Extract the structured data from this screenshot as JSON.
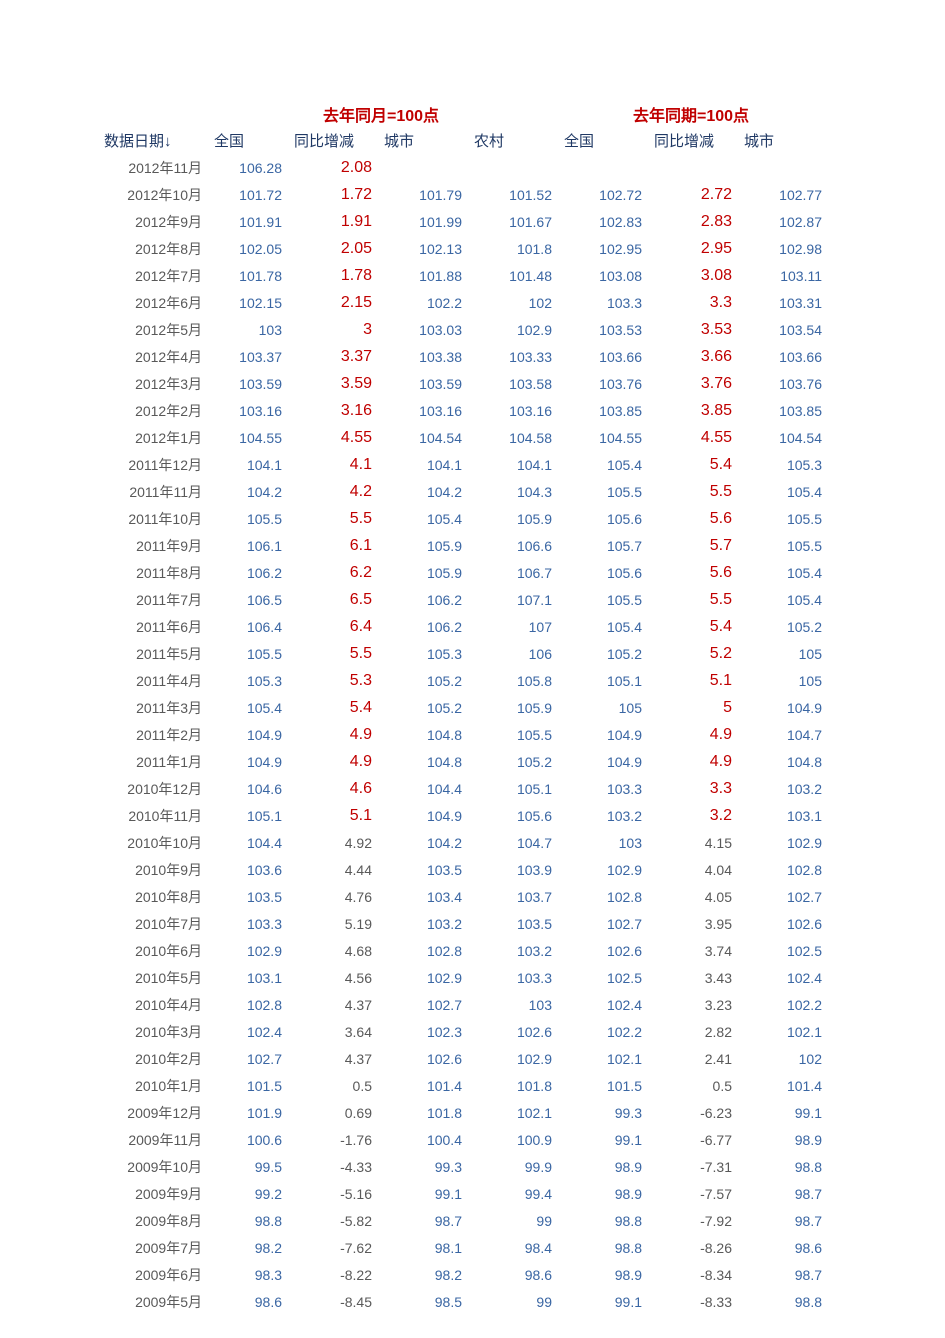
{
  "colors": {
    "header_group": "#c00000",
    "header_col": "#1f3864",
    "date_text": "#595959",
    "value_text": "#3a66a3",
    "change_highlight": "#c00000",
    "change_normal": "#595959",
    "background": "#ffffff"
  },
  "fonts": {
    "group_header_size": 16,
    "col_header_size": 15,
    "cell_size": 14,
    "change_big_size": 16
  },
  "group_headers": {
    "left": "去年同月=100点",
    "right": "去年同期=100点"
  },
  "columns": {
    "date": "数据日期↓",
    "nation": "全国",
    "change": "同比增减",
    "city": "城市",
    "rural": "农村",
    "nation2": "全国",
    "change2": "同比增减",
    "city2": "城市"
  },
  "highlight_rule": "change cells from 2010年11月 and later shown in red larger font",
  "rows": [
    {
      "date": "2012年11月",
      "nation": "106.28",
      "change": "2.08",
      "city": "",
      "rural": "",
      "nation2": "",
      "change2": "",
      "city2": "",
      "hl": true
    },
    {
      "date": "2012年10月",
      "nation": "101.72",
      "change": "1.72",
      "city": "101.79",
      "rural": "101.52",
      "nation2": "102.72",
      "change2": "2.72",
      "city2": "102.77",
      "hl": true
    },
    {
      "date": "2012年9月",
      "nation": "101.91",
      "change": "1.91",
      "city": "101.99",
      "rural": "101.67",
      "nation2": "102.83",
      "change2": "2.83",
      "city2": "102.87",
      "hl": true
    },
    {
      "date": "2012年8月",
      "nation": "102.05",
      "change": "2.05",
      "city": "102.13",
      "rural": "101.8",
      "nation2": "102.95",
      "change2": "2.95",
      "city2": "102.98",
      "hl": true
    },
    {
      "date": "2012年7月",
      "nation": "101.78",
      "change": "1.78",
      "city": "101.88",
      "rural": "101.48",
      "nation2": "103.08",
      "change2": "3.08",
      "city2": "103.11",
      "hl": true
    },
    {
      "date": "2012年6月",
      "nation": "102.15",
      "change": "2.15",
      "city": "102.2",
      "rural": "102",
      "nation2": "103.3",
      "change2": "3.3",
      "city2": "103.31",
      "hl": true
    },
    {
      "date": "2012年5月",
      "nation": "103",
      "change": "3",
      "city": "103.03",
      "rural": "102.9",
      "nation2": "103.53",
      "change2": "3.53",
      "city2": "103.54",
      "hl": true
    },
    {
      "date": "2012年4月",
      "nation": "103.37",
      "change": "3.37",
      "city": "103.38",
      "rural": "103.33",
      "nation2": "103.66",
      "change2": "3.66",
      "city2": "103.66",
      "hl": true
    },
    {
      "date": "2012年3月",
      "nation": "103.59",
      "change": "3.59",
      "city": "103.59",
      "rural": "103.58",
      "nation2": "103.76",
      "change2": "3.76",
      "city2": "103.76",
      "hl": true
    },
    {
      "date": "2012年2月",
      "nation": "103.16",
      "change": "3.16",
      "city": "103.16",
      "rural": "103.16",
      "nation2": "103.85",
      "change2": "3.85",
      "city2": "103.85",
      "hl": true
    },
    {
      "date": "2012年1月",
      "nation": "104.55",
      "change": "4.55",
      "city": "104.54",
      "rural": "104.58",
      "nation2": "104.55",
      "change2": "4.55",
      "city2": "104.54",
      "hl": true
    },
    {
      "date": "2011年12月",
      "nation": "104.1",
      "change": "4.1",
      "city": "104.1",
      "rural": "104.1",
      "nation2": "105.4",
      "change2": "5.4",
      "city2": "105.3",
      "hl": true
    },
    {
      "date": "2011年11月",
      "nation": "104.2",
      "change": "4.2",
      "city": "104.2",
      "rural": "104.3",
      "nation2": "105.5",
      "change2": "5.5",
      "city2": "105.4",
      "hl": true
    },
    {
      "date": "2011年10月",
      "nation": "105.5",
      "change": "5.5",
      "city": "105.4",
      "rural": "105.9",
      "nation2": "105.6",
      "change2": "5.6",
      "city2": "105.5",
      "hl": true
    },
    {
      "date": "2011年9月",
      "nation": "106.1",
      "change": "6.1",
      "city": "105.9",
      "rural": "106.6",
      "nation2": "105.7",
      "change2": "5.7",
      "city2": "105.5",
      "hl": true
    },
    {
      "date": "2011年8月",
      "nation": "106.2",
      "change": "6.2",
      "city": "105.9",
      "rural": "106.7",
      "nation2": "105.6",
      "change2": "5.6",
      "city2": "105.4",
      "hl": true
    },
    {
      "date": "2011年7月",
      "nation": "106.5",
      "change": "6.5",
      "city": "106.2",
      "rural": "107.1",
      "nation2": "105.5",
      "change2": "5.5",
      "city2": "105.4",
      "hl": true
    },
    {
      "date": "2011年6月",
      "nation": "106.4",
      "change": "6.4",
      "city": "106.2",
      "rural": "107",
      "nation2": "105.4",
      "change2": "5.4",
      "city2": "105.2",
      "hl": true
    },
    {
      "date": "2011年5月",
      "nation": "105.5",
      "change": "5.5",
      "city": "105.3",
      "rural": "106",
      "nation2": "105.2",
      "change2": "5.2",
      "city2": "105",
      "hl": true
    },
    {
      "date": "2011年4月",
      "nation": "105.3",
      "change": "5.3",
      "city": "105.2",
      "rural": "105.8",
      "nation2": "105.1",
      "change2": "5.1",
      "city2": "105",
      "hl": true
    },
    {
      "date": "2011年3月",
      "nation": "105.4",
      "change": "5.4",
      "city": "105.2",
      "rural": "105.9",
      "nation2": "105",
      "change2": "5",
      "city2": "104.9",
      "hl": true
    },
    {
      "date": "2011年2月",
      "nation": "104.9",
      "change": "4.9",
      "city": "104.8",
      "rural": "105.5",
      "nation2": "104.9",
      "change2": "4.9",
      "city2": "104.7",
      "hl": true
    },
    {
      "date": "2011年1月",
      "nation": "104.9",
      "change": "4.9",
      "city": "104.8",
      "rural": "105.2",
      "nation2": "104.9",
      "change2": "4.9",
      "city2": "104.8",
      "hl": true
    },
    {
      "date": "2010年12月",
      "nation": "104.6",
      "change": "4.6",
      "city": "104.4",
      "rural": "105.1",
      "nation2": "103.3",
      "change2": "3.3",
      "city2": "103.2",
      "hl": true
    },
    {
      "date": "2010年11月",
      "nation": "105.1",
      "change": "5.1",
      "city": "104.9",
      "rural": "105.6",
      "nation2": "103.2",
      "change2": "3.2",
      "city2": "103.1",
      "hl": true
    },
    {
      "date": "2010年10月",
      "nation": "104.4",
      "change": "4.92",
      "city": "104.2",
      "rural": "104.7",
      "nation2": "103",
      "change2": "4.15",
      "city2": "102.9",
      "hl": false
    },
    {
      "date": "2010年9月",
      "nation": "103.6",
      "change": "4.44",
      "city": "103.5",
      "rural": "103.9",
      "nation2": "102.9",
      "change2": "4.04",
      "city2": "102.8",
      "hl": false
    },
    {
      "date": "2010年8月",
      "nation": "103.5",
      "change": "4.76",
      "city": "103.4",
      "rural": "103.7",
      "nation2": "102.8",
      "change2": "4.05",
      "city2": "102.7",
      "hl": false
    },
    {
      "date": "2010年7月",
      "nation": "103.3",
      "change": "5.19",
      "city": "103.2",
      "rural": "103.5",
      "nation2": "102.7",
      "change2": "3.95",
      "city2": "102.6",
      "hl": false
    },
    {
      "date": "2010年6月",
      "nation": "102.9",
      "change": "4.68",
      "city": "102.8",
      "rural": "103.2",
      "nation2": "102.6",
      "change2": "3.74",
      "city2": "102.5",
      "hl": false
    },
    {
      "date": "2010年5月",
      "nation": "103.1",
      "change": "4.56",
      "city": "102.9",
      "rural": "103.3",
      "nation2": "102.5",
      "change2": "3.43",
      "city2": "102.4",
      "hl": false
    },
    {
      "date": "2010年4月",
      "nation": "102.8",
      "change": "4.37",
      "city": "102.7",
      "rural": "103",
      "nation2": "102.4",
      "change2": "3.23",
      "city2": "102.2",
      "hl": false
    },
    {
      "date": "2010年3月",
      "nation": "102.4",
      "change": "3.64",
      "city": "102.3",
      "rural": "102.6",
      "nation2": "102.2",
      "change2": "2.82",
      "city2": "102.1",
      "hl": false
    },
    {
      "date": "2010年2月",
      "nation": "102.7",
      "change": "4.37",
      "city": "102.6",
      "rural": "102.9",
      "nation2": "102.1",
      "change2": "2.41",
      "city2": "102",
      "hl": false
    },
    {
      "date": "2010年1月",
      "nation": "101.5",
      "change": "0.5",
      "city": "101.4",
      "rural": "101.8",
      "nation2": "101.5",
      "change2": "0.5",
      "city2": "101.4",
      "hl": false
    },
    {
      "date": "2009年12月",
      "nation": "101.9",
      "change": "0.69",
      "city": "101.8",
      "rural": "102.1",
      "nation2": "99.3",
      "change2": "-6.23",
      "city2": "99.1",
      "hl": false
    },
    {
      "date": "2009年11月",
      "nation": "100.6",
      "change": "-1.76",
      "city": "100.4",
      "rural": "100.9",
      "nation2": "99.1",
      "change2": "-6.77",
      "city2": "98.9",
      "hl": false
    },
    {
      "date": "2009年10月",
      "nation": "99.5",
      "change": "-4.33",
      "city": "99.3",
      "rural": "99.9",
      "nation2": "98.9",
      "change2": "-7.31",
      "city2": "98.8",
      "hl": false
    },
    {
      "date": "2009年9月",
      "nation": "99.2",
      "change": "-5.16",
      "city": "99.1",
      "rural": "99.4",
      "nation2": "98.9",
      "change2": "-7.57",
      "city2": "98.7",
      "hl": false
    },
    {
      "date": "2009年8月",
      "nation": "98.8",
      "change": "-5.82",
      "city": "98.7",
      "rural": "99",
      "nation2": "98.8",
      "change2": "-7.92",
      "city2": "98.7",
      "hl": false
    },
    {
      "date": "2009年7月",
      "nation": "98.2",
      "change": "-7.62",
      "city": "98.1",
      "rural": "98.4",
      "nation2": "98.8",
      "change2": "-8.26",
      "city2": "98.6",
      "hl": false
    },
    {
      "date": "2009年6月",
      "nation": "98.3",
      "change": "-8.22",
      "city": "98.2",
      "rural": "98.6",
      "nation2": "98.9",
      "change2": "-8.34",
      "city2": "98.7",
      "hl": false
    },
    {
      "date": "2009年5月",
      "nation": "98.6",
      "change": "-8.45",
      "city": "98.5",
      "rural": "99",
      "nation2": "99.1",
      "change2": "-8.33",
      "city2": "98.8",
      "hl": false
    }
  ]
}
